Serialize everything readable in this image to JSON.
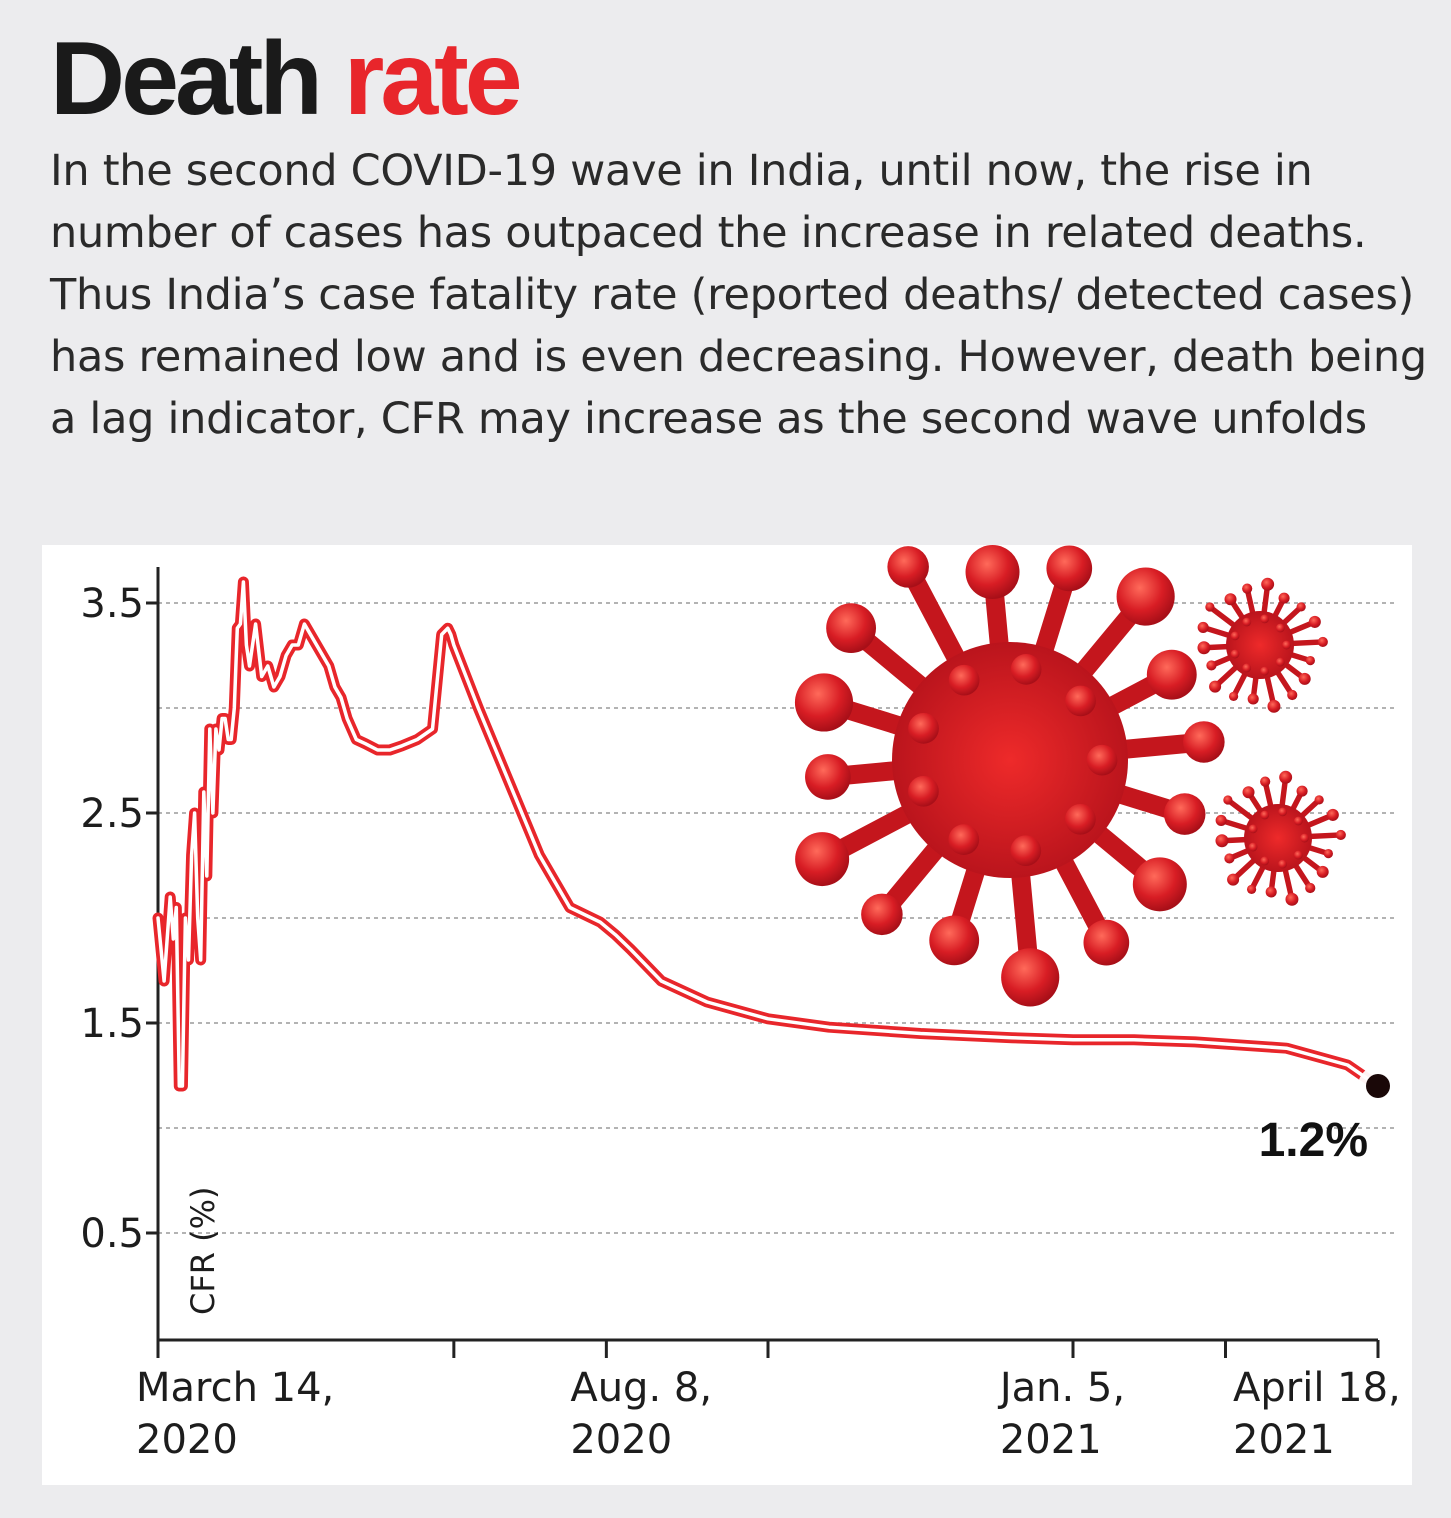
{
  "headline": {
    "word1": "Death",
    "word2": "rate"
  },
  "deck": "In the second COVID-19 wave in India, until now, the rise in number of cases has outpaced the increase in related deaths. Thus India’s case fatality rate (reported deaths/ detected cases) has remained low and is even decreasing. However, death being a lag indicator, CFR may increase as the second wave unfolds",
  "colors": {
    "accent": "#e8262b",
    "virus_dark": "#b5121b",
    "text": "#1a1a1a",
    "grid": "#9a9a9a"
  },
  "chart_data": {
    "type": "line",
    "title": "Death rate",
    "ylabel": "CFR (%)",
    "xlabel": "",
    "ylim": [
      0,
      3.6
    ],
    "yticks": [
      3.5,
      2.5,
      1.5,
      0.5
    ],
    "ytick_labels": [
      "3.5",
      "2.5",
      "1.5",
      "0.5"
    ],
    "gridlines": [
      0.5,
      1.0,
      1.5,
      2.0,
      2.5,
      3.0,
      3.5
    ],
    "grid": true,
    "xlim_days": [
      0,
      400
    ],
    "xtick_days": [
      0,
      97,
      147,
      200,
      300,
      350,
      400
    ],
    "xtick_labels": [
      {
        "day": 0,
        "line1": "March 14,",
        "line2": "2020"
      },
      {
        "day": 147,
        "line1": "Aug. 8,",
        "line2": "2020"
      },
      {
        "day": 297,
        "line1": "Jan. 5,",
        "line2": "2021"
      },
      {
        "day": 400,
        "line1": "April 18,",
        "line2": "2021"
      }
    ],
    "series": [
      {
        "name": "CFR (%)",
        "x": [
          0,
          2,
          4,
          5,
          6,
          7,
          8,
          9,
          10,
          11,
          12,
          13,
          14,
          15,
          16,
          17,
          18,
          19,
          20,
          21,
          22,
          23,
          24,
          25,
          26,
          27,
          28,
          29,
          30,
          32,
          34,
          36,
          38,
          40,
          42,
          44,
          46,
          48,
          50,
          52,
          54,
          56,
          58,
          60,
          62,
          65,
          68,
          72,
          76,
          80,
          85,
          90,
          93,
          95,
          96,
          97,
          105,
          115,
          125,
          135,
          145,
          150,
          155,
          165,
          180,
          200,
          220,
          250,
          280,
          300,
          320,
          340,
          350,
          370,
          390,
          400
        ],
        "values": [
          2.0,
          1.7,
          2.1,
          1.9,
          2.05,
          1.2,
          1.2,
          2.0,
          1.8,
          2.3,
          2.5,
          2.0,
          1.8,
          2.6,
          2.2,
          2.9,
          2.5,
          2.9,
          2.8,
          2.95,
          2.95,
          2.85,
          2.85,
          3.0,
          3.38,
          3.4,
          3.6,
          3.3,
          3.2,
          3.4,
          3.15,
          3.2,
          3.1,
          3.15,
          3.25,
          3.3,
          3.3,
          3.4,
          3.35,
          3.3,
          3.25,
          3.2,
          3.1,
          3.05,
          2.95,
          2.85,
          2.83,
          2.8,
          2.8,
          2.82,
          2.85,
          2.9,
          3.35,
          3.38,
          3.35,
          3.3,
          3.0,
          2.65,
          2.3,
          2.05,
          1.98,
          1.92,
          1.85,
          1.7,
          1.6,
          1.52,
          1.48,
          1.45,
          1.43,
          1.42,
          1.42,
          1.41,
          1.4,
          1.38,
          1.3,
          1.2
        ]
      }
    ],
    "annotations": [
      {
        "day": 400,
        "value": 1.2,
        "text": "1.2%"
      }
    ]
  }
}
